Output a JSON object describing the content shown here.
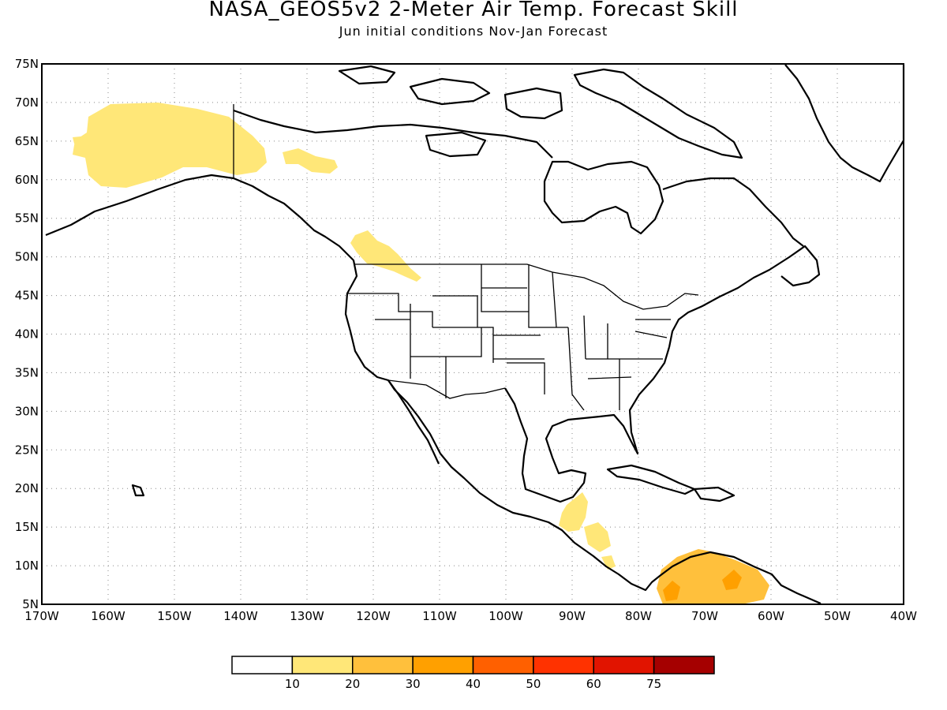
{
  "title": "NASA_GEOS5v2 2-Meter Air Temp. Forecast Skill",
  "subtitle": "Jun initial conditions  Nov-Jan Forecast",
  "map": {
    "region": "North America",
    "lon_range": [
      -170,
      -40
    ],
    "lat_range": [
      5,
      75
    ],
    "lat_ticks": [
      "75N",
      "70N",
      "65N",
      "60N",
      "55N",
      "50N",
      "45N",
      "40N",
      "35N",
      "30N",
      "25N",
      "20N",
      "15N",
      "10N",
      "5N"
    ],
    "lon_ticks": [
      "170W",
      "160W",
      "150W",
      "140W",
      "130W",
      "120W",
      "110W",
      "100W",
      "90W",
      "80W",
      "70W",
      "60W",
      "50W",
      "40W"
    ],
    "gridlines": "dotted",
    "skill_regions": [
      {
        "area": "Alaska and Yukon",
        "category": "10-20"
      },
      {
        "area": "Northern Alberta",
        "category": "10-20"
      },
      {
        "area": "Southern British Columbia and Montana",
        "category": "10-20"
      },
      {
        "area": "Yucatan and Central America",
        "category": "10-20"
      },
      {
        "area": "Northern South America (Colombia / Venezuela)",
        "category": "20-30 with embedded 30-40"
      }
    ]
  },
  "colorbar": {
    "colors": [
      "#ffffff",
      "#ffe778",
      "#ffc03c",
      "#ffa000",
      "#ff6000",
      "#ff3200",
      "#e11400",
      "#a50000"
    ],
    "labels": [
      "10",
      "20",
      "30",
      "40",
      "50",
      "60",
      "75"
    ]
  }
}
